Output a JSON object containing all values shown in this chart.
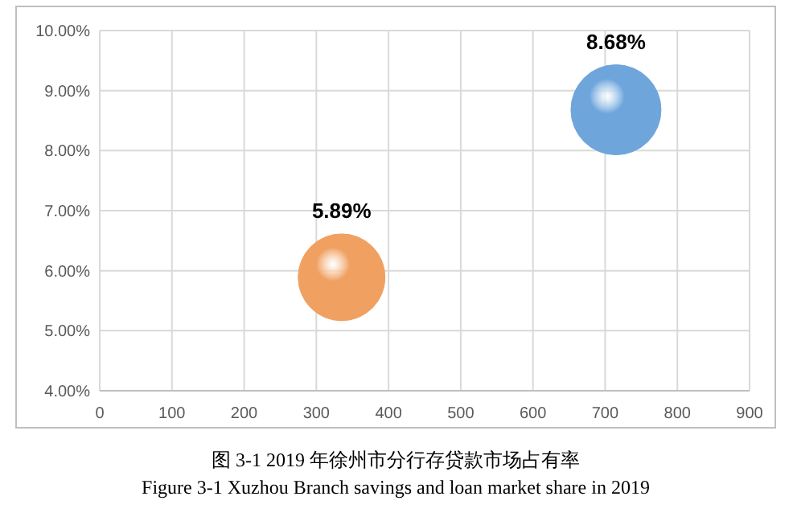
{
  "chart_data": {
    "type": "bubble",
    "x": [
      335,
      715
    ],
    "values": [
      5.89,
      8.68
    ],
    "sizes": [
      0.93,
      1
    ],
    "colors": [
      "#f0a060",
      "#6ea6dc"
    ],
    "value_labels": [
      "5.89%",
      "8.68%"
    ],
    "xlim": [
      0,
      900
    ],
    "xticks": [
      0,
      100,
      200,
      300,
      400,
      500,
      600,
      700,
      800,
      900
    ],
    "ylim": [
      4,
      10
    ],
    "yticks": [
      {
        "value": 4,
        "label": "4.00%"
      },
      {
        "value": 5,
        "label": "5.00%"
      },
      {
        "value": 6,
        "label": "6.00%"
      },
      {
        "value": 7,
        "label": "7.00%"
      },
      {
        "value": 8,
        "label": "8.00%"
      },
      {
        "value": 9,
        "label": "9.00%"
      },
      {
        "value": 10,
        "label": "10.00%"
      }
    ],
    "grid": true,
    "annotations": [
      "图 3-1 2019 年徐州市分行存贷款市场占有率",
      "Figure 3-1 Xuzhou Branch savings and loan market share in 2019"
    ]
  }
}
